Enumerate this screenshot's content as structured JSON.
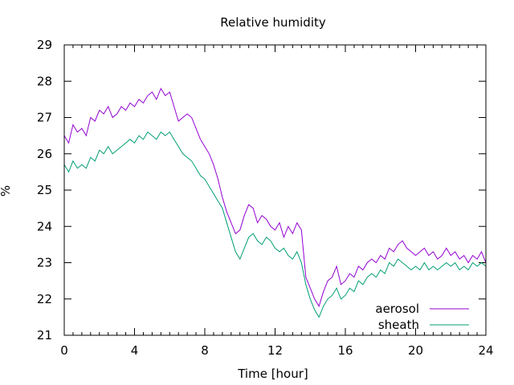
{
  "chart_data": {
    "type": "line",
    "title": "Relative humidity",
    "xlabel": "Time [hour]",
    "ylabel": "%",
    "xlim": [
      0,
      24
    ],
    "ylim": [
      21,
      29
    ],
    "x_ticks": [
      0,
      4,
      8,
      12,
      16,
      20,
      24
    ],
    "y_ticks": [
      21,
      22,
      23,
      24,
      25,
      26,
      27,
      28,
      29
    ],
    "x_tick_labels": [
      "0",
      "4",
      "8",
      "12",
      "16",
      "20",
      "24"
    ],
    "y_tick_labels": [
      "21",
      "22",
      "23",
      "24",
      "25",
      "26",
      "27",
      "28",
      "29"
    ],
    "grid": false,
    "legend_position": "bottom-right",
    "series": [
      {
        "name": "aerosol",
        "color": "#9400d3",
        "x": [
          0,
          0.25,
          0.5,
          0.75,
          1,
          1.25,
          1.5,
          1.75,
          2,
          2.25,
          2.5,
          2.75,
          3,
          3.25,
          3.5,
          3.75,
          4,
          4.25,
          4.5,
          4.75,
          5,
          5.25,
          5.5,
          5.75,
          6,
          6.25,
          6.5,
          6.75,
          7,
          7.25,
          7.5,
          7.75,
          8,
          8.25,
          8.5,
          8.75,
          9,
          9.25,
          9.5,
          9.75,
          10,
          10.25,
          10.5,
          10.75,
          11,
          11.25,
          11.5,
          11.75,
          12,
          12.25,
          12.5,
          12.75,
          13,
          13.25,
          13.5,
          13.75,
          14,
          14.25,
          14.5,
          14.75,
          15,
          15.25,
          15.5,
          15.75,
          16,
          16.25,
          16.5,
          16.75,
          17,
          17.25,
          17.5,
          17.75,
          18,
          18.25,
          18.5,
          18.75,
          19,
          19.25,
          19.5,
          19.75,
          20,
          20.25,
          20.5,
          20.75,
          21,
          21.25,
          21.5,
          21.75,
          22,
          22.25,
          22.5,
          22.75,
          23,
          23.25,
          23.5,
          23.75,
          24
        ],
        "y": [
          26.5,
          26.3,
          26.8,
          26.6,
          26.7,
          26.5,
          27.0,
          26.9,
          27.2,
          27.1,
          27.3,
          27.0,
          27.1,
          27.3,
          27.2,
          27.4,
          27.3,
          27.5,
          27.4,
          27.6,
          27.7,
          27.5,
          27.8,
          27.6,
          27.7,
          27.3,
          26.9,
          27.0,
          27.1,
          27.0,
          26.7,
          26.4,
          26.2,
          26.0,
          25.7,
          25.3,
          24.8,
          24.4,
          24.1,
          23.8,
          23.9,
          24.3,
          24.6,
          24.5,
          24.1,
          24.3,
          24.2,
          24.0,
          23.9,
          24.1,
          23.7,
          24.0,
          23.8,
          24.1,
          23.9,
          22.6,
          22.3,
          22.0,
          21.8,
          22.2,
          22.5,
          22.6,
          22.9,
          22.4,
          22.5,
          22.7,
          22.6,
          22.9,
          22.8,
          23.0,
          23.1,
          23.0,
          23.2,
          23.1,
          23.4,
          23.3,
          23.5,
          23.6,
          23.4,
          23.3,
          23.2,
          23.3,
          23.4,
          23.2,
          23.3,
          23.1,
          23.2,
          23.4,
          23.2,
          23.3,
          23.1,
          23.2,
          23.0,
          23.2,
          23.1,
          23.3,
          23.0
        ]
      },
      {
        "name": "sheath",
        "color": "#009e73",
        "x": [
          0,
          0.25,
          0.5,
          0.75,
          1,
          1.25,
          1.5,
          1.75,
          2,
          2.25,
          2.5,
          2.75,
          3,
          3.25,
          3.5,
          3.75,
          4,
          4.25,
          4.5,
          4.75,
          5,
          5.25,
          5.5,
          5.75,
          6,
          6.25,
          6.5,
          6.75,
          7,
          7.25,
          7.5,
          7.75,
          8,
          8.25,
          8.5,
          8.75,
          9,
          9.25,
          9.5,
          9.75,
          10,
          10.25,
          10.5,
          10.75,
          11,
          11.25,
          11.5,
          11.75,
          12,
          12.25,
          12.5,
          12.75,
          13,
          13.25,
          13.5,
          13.75,
          14,
          14.25,
          14.5,
          14.75,
          15,
          15.25,
          15.5,
          15.75,
          16,
          16.25,
          16.5,
          16.75,
          17,
          17.25,
          17.5,
          17.75,
          18,
          18.25,
          18.5,
          18.75,
          19,
          19.25,
          19.5,
          19.75,
          20,
          20.25,
          20.5,
          20.75,
          21,
          21.25,
          21.5,
          21.75,
          22,
          22.25,
          22.5,
          22.75,
          23,
          23.25,
          23.5,
          23.75,
          24
        ],
        "y": [
          25.7,
          25.5,
          25.8,
          25.6,
          25.7,
          25.6,
          25.9,
          25.8,
          26.1,
          26.0,
          26.2,
          26.0,
          26.1,
          26.2,
          26.3,
          26.4,
          26.3,
          26.5,
          26.4,
          26.6,
          26.5,
          26.4,
          26.6,
          26.5,
          26.6,
          26.4,
          26.2,
          26.0,
          25.9,
          25.8,
          25.6,
          25.4,
          25.3,
          25.1,
          24.9,
          24.7,
          24.5,
          24.1,
          23.7,
          23.3,
          23.1,
          23.4,
          23.7,
          23.8,
          23.6,
          23.5,
          23.7,
          23.6,
          23.4,
          23.3,
          23.4,
          23.2,
          23.1,
          23.3,
          23.0,
          22.4,
          22.0,
          21.7,
          21.5,
          21.8,
          22.0,
          22.1,
          22.3,
          22.0,
          22.1,
          22.3,
          22.2,
          22.5,
          22.4,
          22.6,
          22.7,
          22.6,
          22.8,
          22.7,
          23.0,
          22.9,
          23.1,
          23.0,
          22.9,
          22.8,
          22.9,
          22.8,
          23.0,
          22.8,
          22.9,
          22.8,
          22.9,
          23.0,
          22.9,
          23.0,
          22.8,
          22.9,
          22.8,
          23.0,
          22.9,
          23.0,
          22.9
        ]
      }
    ]
  }
}
